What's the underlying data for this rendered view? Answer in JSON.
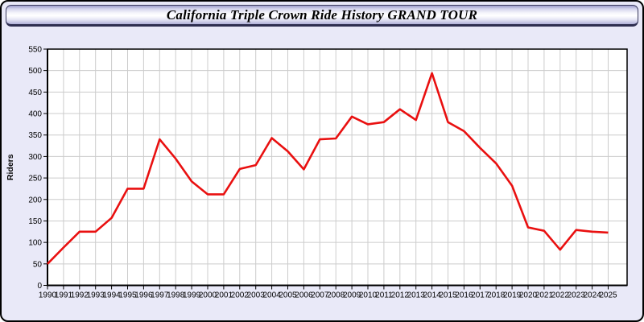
{
  "window": {
    "title": "California Triple Crown Ride History GRAND TOUR"
  },
  "colors": {
    "window_bg": "#e9e9f8",
    "plot_bg": "#ffffff",
    "grid": "#cccccc",
    "axis": "#000000",
    "line": "#e91010"
  },
  "chart_data": {
    "type": "line",
    "title": "California Triple Crown Ride History GRAND TOUR",
    "xlabel": "",
    "ylabel": "Riders",
    "ylim": [
      0,
      550
    ],
    "ytick_step": 50,
    "grid": true,
    "legend": "none",
    "x": [
      1990,
      1991,
      1992,
      1993,
      1994,
      1995,
      1996,
      1997,
      1998,
      1999,
      2000,
      2001,
      2002,
      2003,
      2004,
      2005,
      2006,
      2007,
      2008,
      2009,
      2010,
      2011,
      2012,
      2013,
      2014,
      2015,
      2016,
      2017,
      2018,
      2019,
      2020,
      2021,
      2022,
      2023,
      2024,
      2025
    ],
    "series": [
      {
        "name": "Riders",
        "color": "#e91010",
        "values": [
          50,
          88,
          125,
          125,
          157,
          225,
          225,
          340,
          295,
          242,
          212,
          212,
          271,
          280,
          343,
          312,
          270,
          340,
          342,
          393,
          375,
          380,
          410,
          385,
          494,
          380,
          359,
          320,
          284,
          232,
          135,
          127,
          83,
          129,
          125,
          123
        ]
      }
    ]
  }
}
